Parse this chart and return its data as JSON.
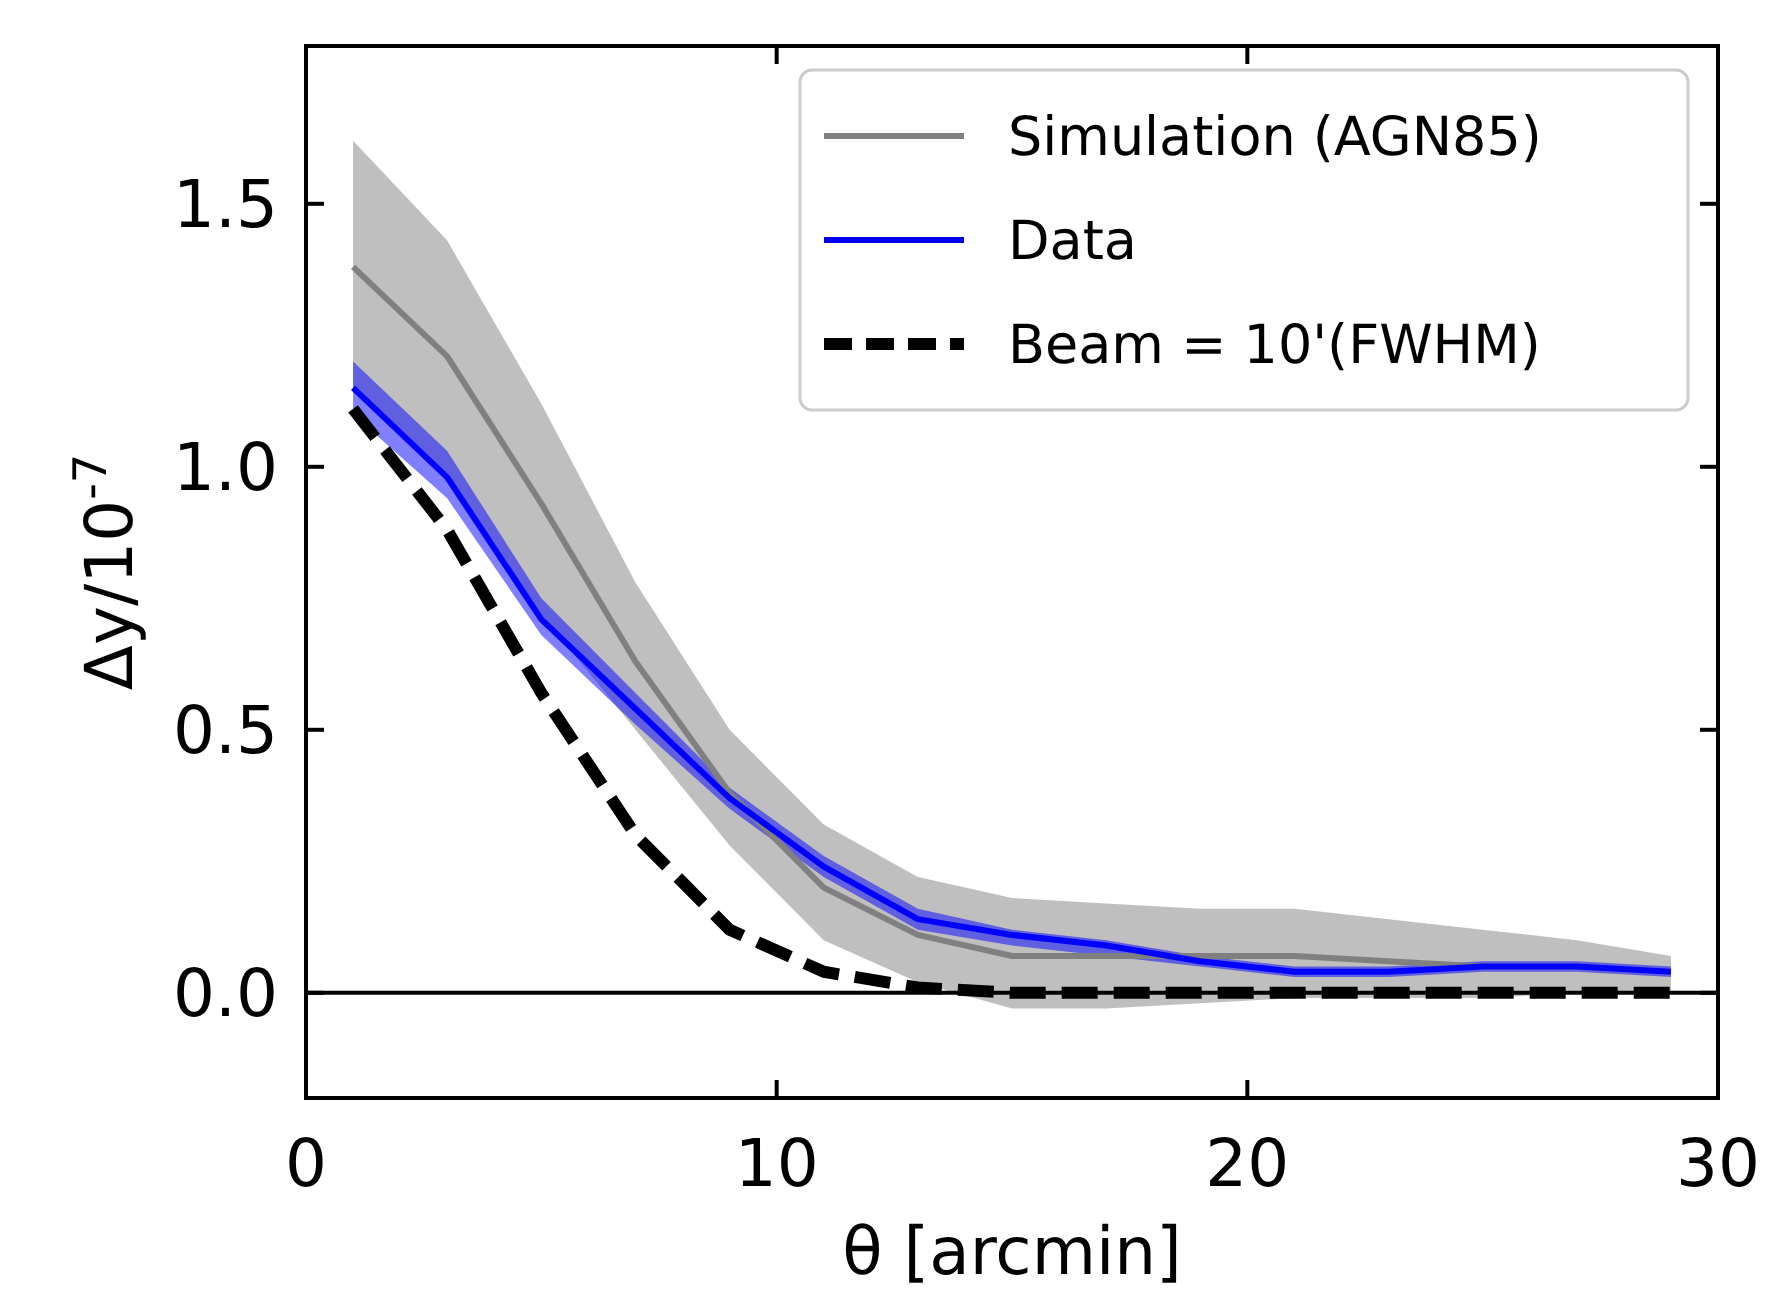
{
  "chart_data": {
    "type": "line",
    "xlabel": "θ [arcmin]",
    "ylabel": "Δy/10$^{-7}$",
    "xlim": [
      0,
      30
    ],
    "ylim": [
      -0.2,
      1.8
    ],
    "xticks": [
      0,
      10,
      20,
      30
    ],
    "yticks": [
      {
        "value": 0,
        "label": "0.0"
      },
      {
        "value": 0.5,
        "label": "0.5"
      },
      {
        "value": 1,
        "label": "1.0"
      },
      {
        "value": 1.5,
        "label": "1.5"
      }
    ],
    "x": [
      1,
      3,
      5,
      7,
      9,
      11,
      13,
      15,
      17,
      19,
      21,
      23,
      25,
      27,
      29
    ],
    "series": [
      {
        "name": "Simulation (AGN85)",
        "color": "#808080",
        "values": [
          1.38,
          1.21,
          0.93,
          0.63,
          0.38,
          0.2,
          0.11,
          0.07,
          0.07,
          0.07,
          0.07,
          0.06,
          0.05,
          0.05,
          0.04
        ],
        "upper": [
          1.62,
          1.43,
          1.12,
          0.78,
          0.5,
          0.32,
          0.22,
          0.18,
          0.17,
          0.16,
          0.16,
          0.14,
          0.12,
          0.1,
          0.07
        ],
        "lower": [
          1.15,
          0.98,
          0.72,
          0.5,
          0.28,
          0.1,
          0.02,
          -0.03,
          -0.03,
          -0.02,
          -0.01,
          -0.01,
          -0.01,
          0,
          0
        ]
      },
      {
        "name": "Data",
        "color": "#0000ff",
        "values": [
          1.15,
          0.98,
          0.71,
          0.54,
          0.37,
          0.24,
          0.14,
          0.11,
          0.09,
          0.06,
          0.04,
          0.04,
          0.05,
          0.05,
          0.04
        ],
        "upper": [
          1.2,
          1.03,
          0.75,
          0.57,
          0.39,
          0.26,
          0.16,
          0.12,
          0.1,
          0.07,
          0.05,
          0.05,
          0.06,
          0.06,
          0.05
        ],
        "lower": [
          1.1,
          0.94,
          0.68,
          0.51,
          0.35,
          0.22,
          0.12,
          0.09,
          0.07,
          0.05,
          0.03,
          0.03,
          0.04,
          0.04,
          0.03
        ]
      },
      {
        "name": "Beam = 10'(FWHM)",
        "color": "#000000",
        "line_style": "dashed",
        "values": [
          1.11,
          0.88,
          0.57,
          0.3,
          0.12,
          0.04,
          0.01,
          0,
          0,
          0,
          0,
          0,
          0,
          0,
          0
        ]
      }
    ],
    "ref_lines": [
      {
        "axis": "y",
        "value": 0,
        "color": "#000000"
      }
    ],
    "legend": "top right",
    "grid": false
  }
}
